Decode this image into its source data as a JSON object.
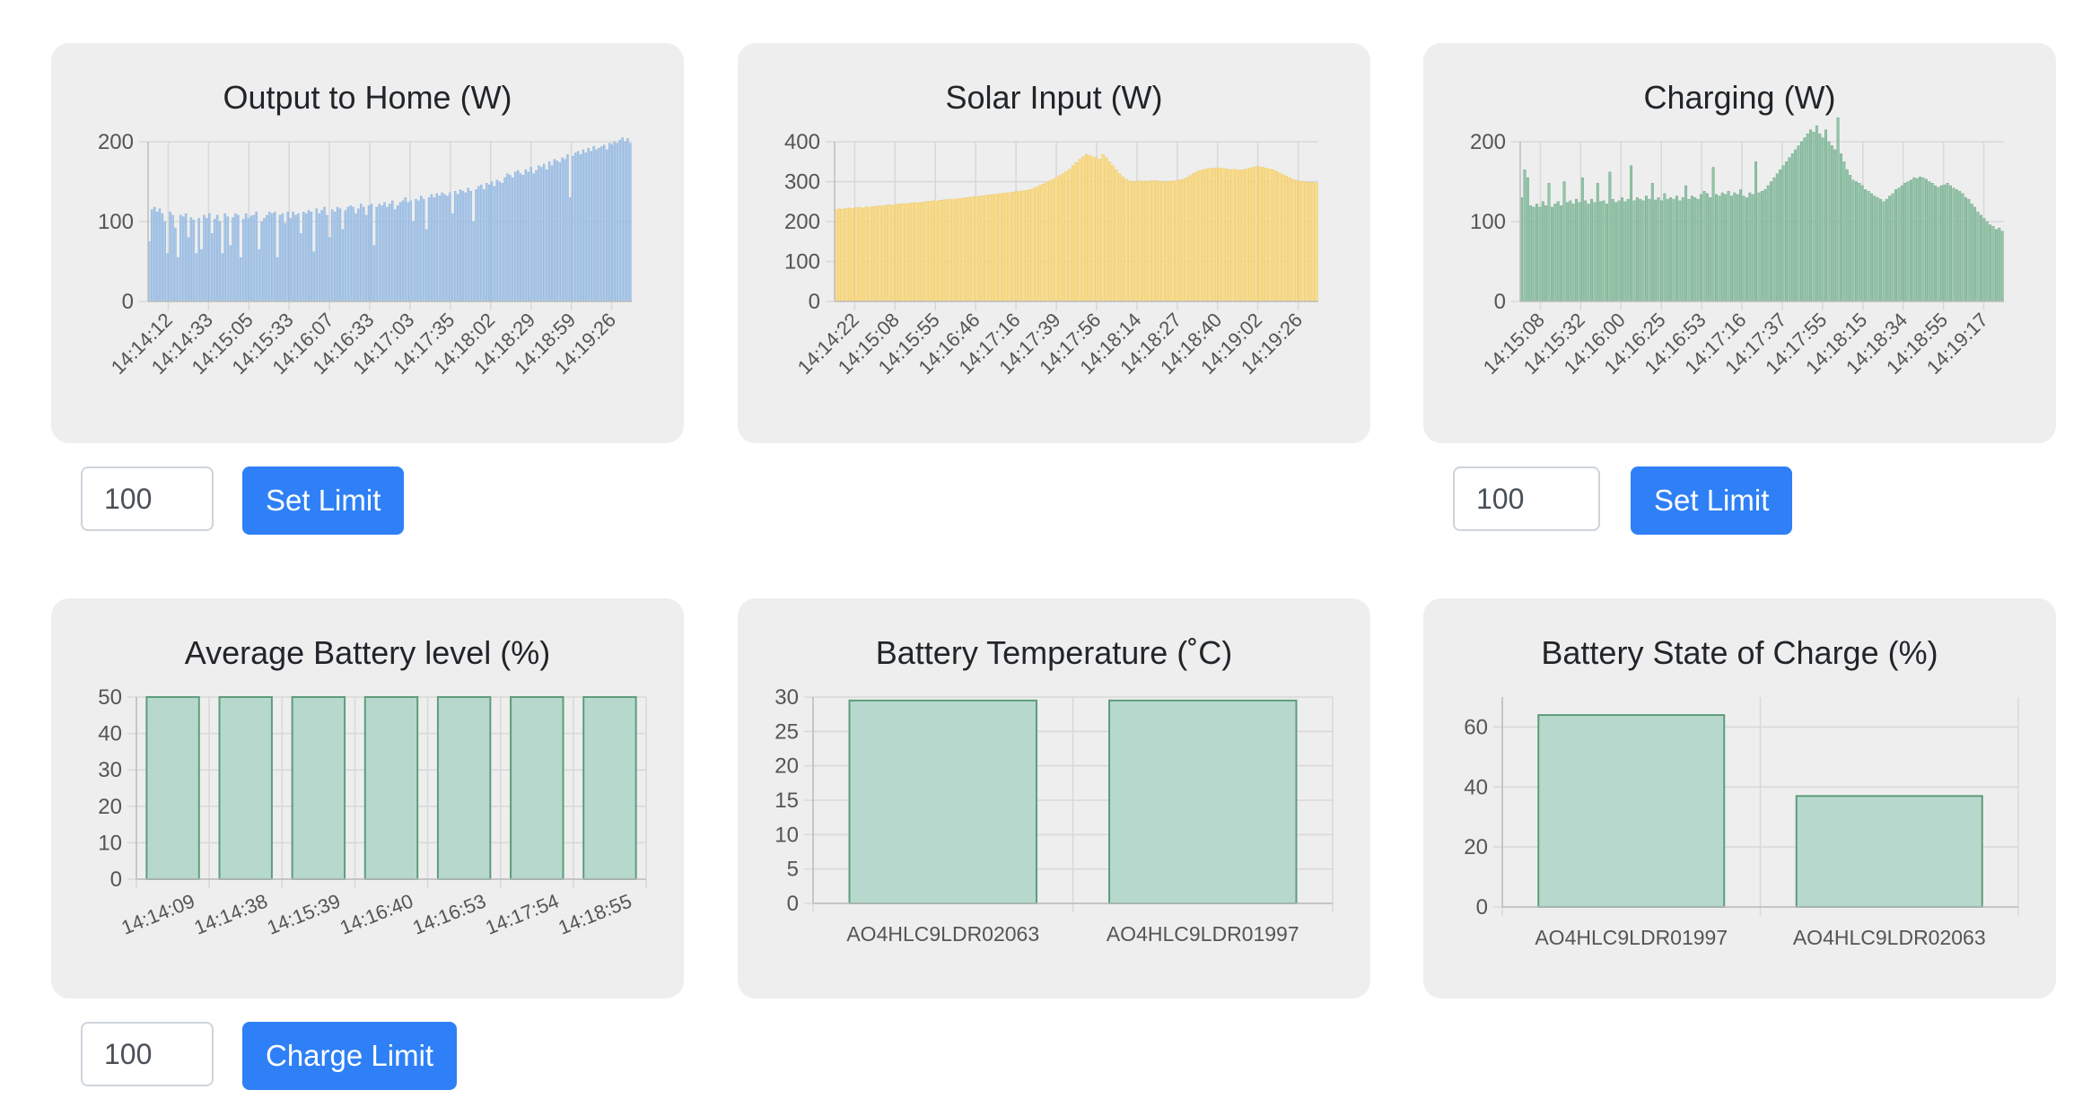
{
  "charts": {
    "output": {
      "type": "bar",
      "title": "Output to Home (W)",
      "color": "#a7c6e8",
      "edge": "#7ea9d9",
      "ylim": [
        0,
        200
      ],
      "yticks": [
        0,
        100,
        200
      ],
      "xticks": [
        "14:14:12",
        "14:14:33",
        "14:15:05",
        "14:15:33",
        "14:16:07",
        "14:16:33",
        "14:17:03",
        "14:17:35",
        "14:18:02",
        "14:18:29",
        "14:18:59",
        "14:19:26"
      ],
      "values": [
        75,
        115,
        118,
        112,
        116,
        110,
        100,
        60,
        112,
        108,
        92,
        55,
        108,
        106,
        110,
        80,
        105,
        102,
        60,
        104,
        65,
        108,
        104,
        110,
        85,
        103,
        108,
        100,
        60,
        110,
        106,
        70,
        105,
        110,
        108,
        55,
        103,
        110,
        104,
        107,
        108,
        112,
        65,
        100,
        104,
        108,
        112,
        110,
        112,
        55,
        108,
        110,
        98,
        112,
        104,
        112,
        108,
        110,
        85,
        112,
        110,
        114,
        112,
        62,
        116,
        110,
        114,
        118,
        108,
        80,
        115,
        112,
        118,
        116,
        90,
        114,
        118,
        120,
        118,
        110,
        116,
        122,
        118,
        108,
        120,
        122,
        70,
        118,
        122,
        120,
        124,
        118,
        122,
        126,
        115,
        120,
        124,
        126,
        130,
        124,
        126,
        100,
        128,
        126,
        132,
        128,
        90,
        130,
        134,
        130,
        135,
        132,
        136,
        134,
        132,
        136,
        110,
        138,
        134,
        140,
        138,
        136,
        142,
        138,
        100,
        140,
        144,
        146,
        140,
        148,
        146,
        150,
        144,
        152,
        150,
        148,
        155,
        160,
        158,
        155,
        162,
        164,
        160,
        158,
        165,
        162,
        168,
        160,
        164,
        170,
        168,
        172,
        165,
        175,
        170,
        178,
        176,
        174,
        180,
        178,
        184,
        130,
        182,
        186,
        188,
        184,
        190,
        186,
        192,
        188,
        194,
        190,
        192,
        194,
        196,
        190,
        198,
        196,
        200,
        198,
        202,
        205,
        200,
        204,
        198
      ]
    },
    "solar": {
      "type": "area",
      "title": "Solar Input (W)",
      "color": "#f9dc8c",
      "edge": "#efc048",
      "ylim": [
        0,
        400
      ],
      "yticks": [
        0,
        100,
        200,
        300,
        400
      ],
      "xticks": [
        "14:14:22",
        "14:15:08",
        "14:15:55",
        "14:16:46",
        "14:17:16",
        "14:17:39",
        "14:17:56",
        "14:18:14",
        "14:18:27",
        "14:18:40",
        "14:19:02",
        "14:19:26"
      ],
      "values": [
        230,
        232,
        231,
        233,
        234,
        232,
        235,
        236,
        234,
        237,
        236,
        238,
        238,
        240,
        239,
        241,
        242,
        241,
        243,
        244,
        245,
        244,
        246,
        247,
        248,
        247,
        249,
        250,
        251,
        252,
        251,
        253,
        254,
        255,
        256,
        255,
        257,
        258,
        259,
        260,
        261,
        262,
        262,
        264,
        265,
        266,
        267,
        268,
        268,
        270,
        271,
        272,
        272,
        274,
        275,
        276,
        277,
        278,
        280,
        283,
        286,
        290,
        294,
        298,
        302,
        306,
        310,
        315,
        320,
        326,
        332,
        340,
        348,
        356,
        362,
        368,
        366,
        362,
        360,
        356,
        368,
        360,
        350,
        340,
        330,
        320,
        312,
        306,
        302,
        300,
        301,
        302,
        300,
        301,
        302,
        303,
        302,
        301,
        300,
        300,
        301,
        302,
        302,
        304,
        306,
        310,
        315,
        320,
        324,
        328,
        330,
        332,
        333,
        334,
        335,
        334,
        333,
        332,
        330,
        331,
        330,
        329,
        330,
        332,
        334,
        336,
        338,
        337,
        336,
        334,
        332,
        330,
        326,
        322,
        318,
        314,
        310,
        306,
        303,
        301,
        300,
        299,
        298,
        298,
        297
      ]
    },
    "charging": {
      "type": "bar",
      "title": "Charging (W)",
      "color": "#93c4a8",
      "edge": "#5e9c7c",
      "ylim": [
        0,
        200
      ],
      "yticks": [
        0,
        100,
        200
      ],
      "xticks": [
        "14:15:08",
        "14:15:32",
        "14:16:00",
        "14:16:25",
        "14:16:53",
        "14:17:16",
        "14:17:37",
        "14:17:55",
        "14:18:15",
        "14:18:34",
        "14:18:55",
        "14:19:17"
      ],
      "values": [
        130,
        165,
        155,
        120,
        118,
        122,
        118,
        125,
        120,
        148,
        118,
        122,
        125,
        120,
        150,
        124,
        126,
        122,
        128,
        124,
        155,
        126,
        122,
        128,
        124,
        148,
        125,
        126,
        122,
        162,
        128,
        124,
        126,
        130,
        125,
        128,
        170,
        126,
        130,
        128,
        126,
        132,
        128,
        148,
        127,
        130,
        126,
        135,
        128,
        130,
        128,
        132,
        126,
        130,
        145,
        128,
        132,
        130,
        128,
        134,
        138,
        135,
        130,
        168,
        134,
        132,
        136,
        134,
        138,
        132,
        136,
        134,
        140,
        132,
        130,
        136,
        134,
        175,
        136,
        138,
        140,
        145,
        150,
        155,
        160,
        165,
        170,
        175,
        180,
        185,
        190,
        195,
        200,
        205,
        210,
        215,
        212,
        220,
        210,
        205,
        215,
        200,
        195,
        190,
        230,
        185,
        175,
        165,
        158,
        152,
        150,
        148,
        145,
        140,
        138,
        135,
        132,
        130,
        128,
        125,
        128,
        132,
        135,
        140,
        142,
        145,
        148,
        150,
        152,
        155,
        154,
        156,
        155,
        153,
        150,
        148,
        145,
        143,
        145,
        146,
        148,
        145,
        142,
        140,
        138,
        135,
        130,
        128,
        122,
        118,
        112,
        108,
        104,
        100,
        96,
        94,
        90,
        92,
        88
      ]
    },
    "avgbattery": {
      "type": "bar",
      "title": "Average Battery level (%)",
      "color": "#b7d9cd",
      "edge": "#5e9c7c",
      "ylim": [
        0,
        50
      ],
      "yticks": [
        0,
        10,
        20,
        30,
        40,
        50
      ],
      "categories": [
        "14:14:09",
        "14:14:38",
        "14:15:39",
        "14:16:40",
        "14:16:53",
        "14:17:54",
        "14:18:55"
      ],
      "values": [
        50,
        50,
        50,
        50,
        50,
        50,
        50
      ]
    },
    "temperature": {
      "type": "bar",
      "title": "Battery Temperature (˚C)",
      "color": "#b7d9cd",
      "edge": "#5e9c7c",
      "ylim": [
        0,
        30
      ],
      "yticks": [
        0,
        5,
        10,
        15,
        20,
        25,
        30
      ],
      "categories": [
        "AO4HLC9LDR02063",
        "AO4HLC9LDR01997"
      ],
      "values": [
        29.5,
        29.5
      ]
    },
    "soc": {
      "type": "bar",
      "title": "Battery State of Charge (%)",
      "color": "#b7d9cd",
      "edge": "#5e9c7c",
      "ylim": [
        0,
        70
      ],
      "yticks": [
        0,
        20,
        40,
        60
      ],
      "categories": [
        "AO4HLC9LDR01997",
        "AO4HLC9LDR02063"
      ],
      "values": [
        64,
        37
      ]
    }
  },
  "controls": {
    "output_limit_value": "100",
    "set_limit_label": "Set Limit",
    "charging_limit_value": "100",
    "charge_limit_value": "100",
    "charge_limit_label": "Charge Limit"
  }
}
